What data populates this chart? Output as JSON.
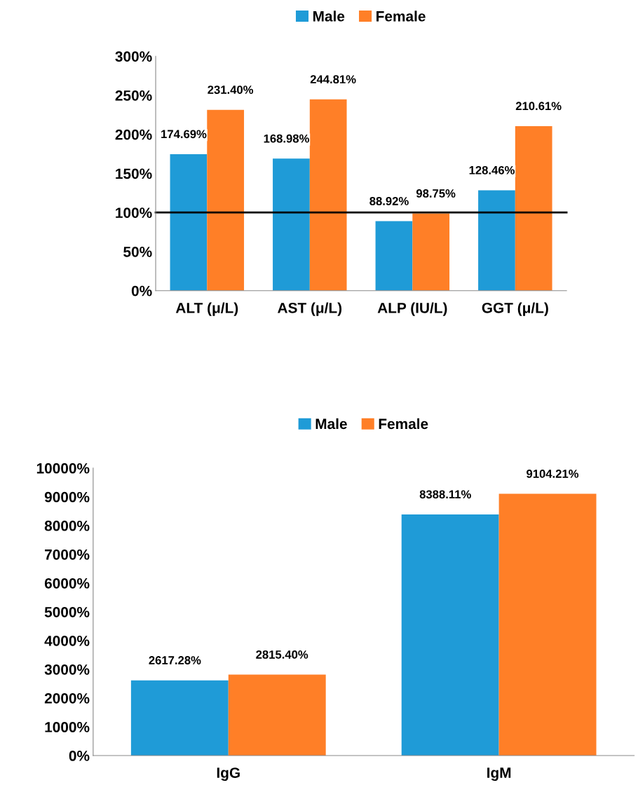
{
  "chart_data": [
    {
      "type": "bar",
      "categories": [
        "ALT (μ/L)",
        "AST (μ/L)",
        "ALP (IU/L)",
        "GGT (μ/L)"
      ],
      "series": [
        {
          "name": "Male",
          "color": "#1f9bd7",
          "values": [
            174.69,
            168.98,
            88.92,
            128.46
          ],
          "value_labels": [
            "174.69%",
            "168.98%",
            "88.92%",
            "128.46%"
          ]
        },
        {
          "name": "Female",
          "color": "#ff7f27",
          "values": [
            231.4,
            244.81,
            98.75,
            210.61
          ],
          "value_labels": [
            "231.40%",
            "244.81%",
            "98.75%",
            "210.61%"
          ]
        }
      ],
      "ylim": [
        0,
        300
      ],
      "yticks": [
        {
          "value": 0,
          "label": "0%"
        },
        {
          "value": 50,
          "label": "50%"
        },
        {
          "value": 100,
          "label": "100%"
        },
        {
          "value": 150,
          "label": "150%"
        },
        {
          "value": 200,
          "label": "200%"
        },
        {
          "value": 250,
          "label": "250%"
        },
        {
          "value": 300,
          "label": "300%"
        }
      ],
      "ref_lines": [
        {
          "axis": "y",
          "value": 100,
          "color": "#000000"
        }
      ],
      "grid": false,
      "legend": "top"
    },
    {
      "type": "bar",
      "categories": [
        "IgG",
        "IgM"
      ],
      "series": [
        {
          "name": "Male",
          "color": "#1f9bd7",
          "values": [
            2617.28,
            8388.11
          ],
          "value_labels": [
            "2617.28%",
            "8388.11%"
          ]
        },
        {
          "name": "Female",
          "color": "#ff7f27",
          "values": [
            2815.4,
            9104.21
          ],
          "value_labels": [
            "2815.40%",
            "9104.21%"
          ]
        }
      ],
      "ylim": [
        0,
        10000
      ],
      "yticks": [
        {
          "value": 0,
          "label": "0%"
        },
        {
          "value": 1000,
          "label": "1000%"
        },
        {
          "value": 2000,
          "label": "2000%"
        },
        {
          "value": 3000,
          "label": "3000%"
        },
        {
          "value": 4000,
          "label": "4000%"
        },
        {
          "value": 5000,
          "label": "5000%"
        },
        {
          "value": 6000,
          "label": "6000%"
        },
        {
          "value": 7000,
          "label": "7000%"
        },
        {
          "value": 8000,
          "label": "8000%"
        },
        {
          "value": 9000,
          "label": "9000%"
        },
        {
          "value": 10000,
          "label": "10000%"
        }
      ],
      "grid": false,
      "legend": "top"
    }
  ]
}
